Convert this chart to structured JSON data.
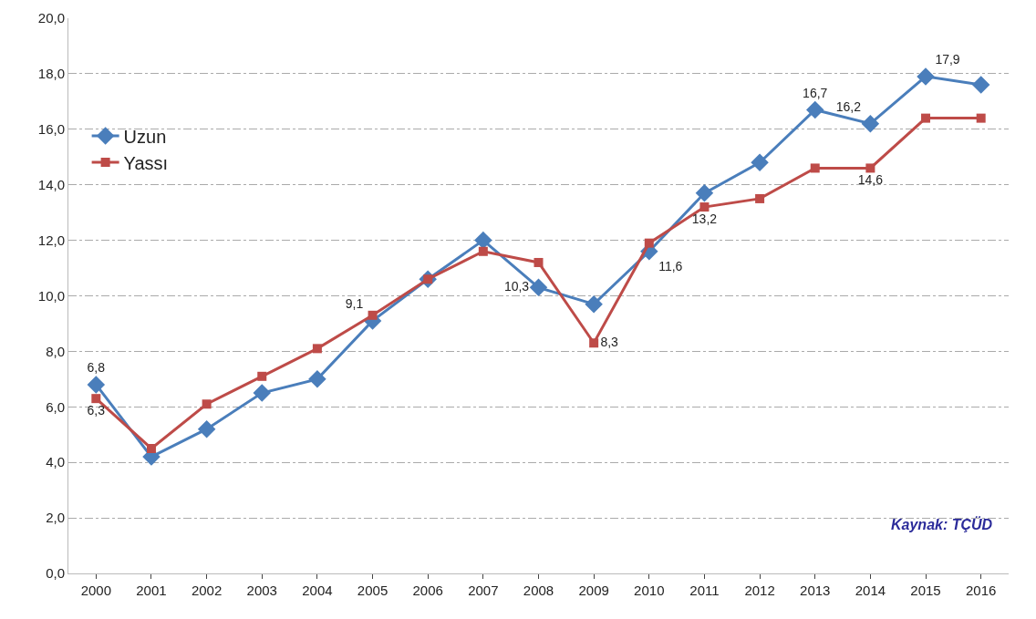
{
  "chart_data": {
    "type": "line",
    "categories": [
      "2000",
      "2001",
      "2002",
      "2003",
      "2004",
      "2005",
      "2006",
      "2007",
      "2008",
      "2009",
      "2010",
      "2011",
      "2012",
      "2013",
      "2014",
      "2015",
      "2016"
    ],
    "series": [
      {
        "name": "Uzun",
        "color": "#4a7ebb",
        "marker": "diamond",
        "values": [
          6.8,
          4.2,
          5.2,
          6.5,
          7.0,
          9.1,
          10.6,
          12.0,
          10.3,
          9.7,
          11.6,
          13.7,
          14.8,
          16.7,
          16.2,
          17.9,
          17.6
        ],
        "value_labels": [
          "6,8",
          null,
          null,
          null,
          null,
          "9,1",
          null,
          null,
          "10,3",
          null,
          "11,6",
          null,
          null,
          "16,7",
          "16,2",
          "17,9",
          null
        ]
      },
      {
        "name": "Yassı",
        "color": "#be4b48",
        "marker": "square",
        "values": [
          6.3,
          4.5,
          6.1,
          7.1,
          8.1,
          9.3,
          10.6,
          11.6,
          11.2,
          8.3,
          11.9,
          13.2,
          13.5,
          14.6,
          14.6,
          16.4,
          16.4
        ],
        "value_labels": [
          "6,3",
          null,
          null,
          null,
          null,
          null,
          null,
          null,
          null,
          "8,3",
          null,
          "13,2",
          null,
          null,
          "14,6",
          null,
          null
        ]
      }
    ],
    "ylim": [
      0,
      20
    ],
    "yticks": [
      {
        "value": 0,
        "label": "0,0"
      },
      {
        "value": 2,
        "label": "2,0"
      },
      {
        "value": 4,
        "label": "4,0"
      },
      {
        "value": 6,
        "label": "6,0"
      },
      {
        "value": 8,
        "label": "8,0"
      },
      {
        "value": 10,
        "label": "10,0"
      },
      {
        "value": 12,
        "label": "12,0"
      },
      {
        "value": 14,
        "label": "14,0"
      },
      {
        "value": 16,
        "label": "16,0"
      },
      {
        "value": 18,
        "label": "18,0"
      },
      {
        "value": 20,
        "label": "20,0"
      }
    ],
    "grid": "y",
    "legend": "top left",
    "line_style": "solid",
    "annotations": [
      "Kaynak: TÇÜD"
    ]
  }
}
